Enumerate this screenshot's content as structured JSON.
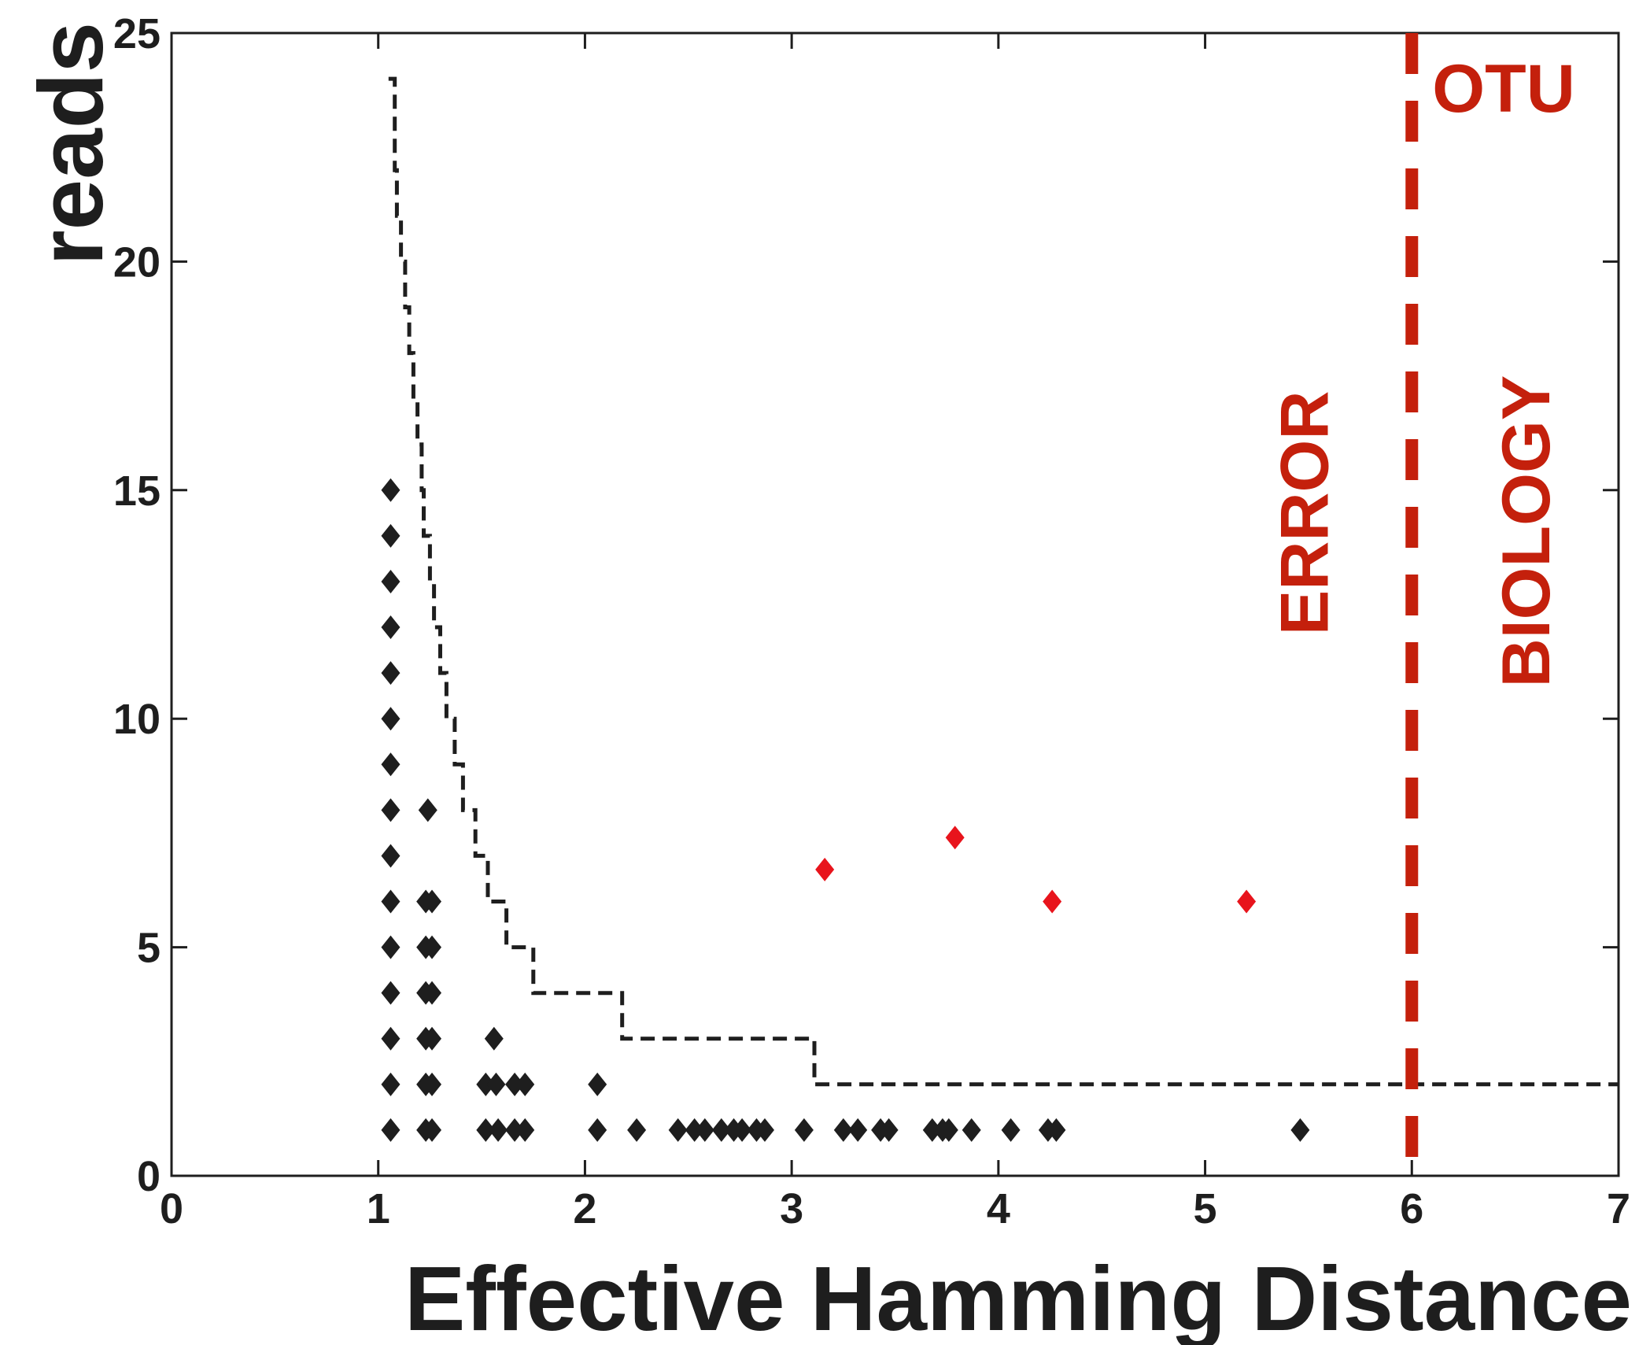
{
  "chart_data": {
    "type": "scatter",
    "title": "",
    "xlabel": "Effective Hamming Distance",
    "ylabel": "reads",
    "xlim": [
      0,
      7
    ],
    "ylim": [
      0,
      25
    ],
    "x_ticks": [
      "0",
      "1",
      "2",
      "3",
      "4",
      "5",
      "6",
      "7"
    ],
    "y_ticks": [
      "0",
      "5",
      "10",
      "15",
      "20",
      "25"
    ],
    "grid": false,
    "legend": "none",
    "colors": {
      "axis": "#1e1e1e",
      "points": "#1e1e1e",
      "highlight": "#e8141c",
      "otu": "#c4200c",
      "threshold_curve": "#1e1e1e"
    },
    "series": [
      {
        "marker": "diamond",
        "color": "#1e1e1e",
        "points": [
          [
            1.06,
            15
          ],
          [
            1.06,
            14
          ],
          [
            1.06,
            13
          ],
          [
            1.06,
            12
          ],
          [
            1.06,
            11
          ],
          [
            1.06,
            10
          ],
          [
            1.06,
            9
          ],
          [
            1.06,
            8
          ],
          [
            1.06,
            7
          ],
          [
            1.06,
            6
          ],
          [
            1.06,
            5
          ],
          [
            1.06,
            4
          ],
          [
            1.06,
            3
          ],
          [
            1.06,
            2
          ],
          [
            1.06,
            1
          ],
          [
            1.24,
            8
          ],
          [
            1.23,
            6
          ],
          [
            1.26,
            6
          ],
          [
            1.23,
            5
          ],
          [
            1.26,
            5
          ],
          [
            1.23,
            4
          ],
          [
            1.26,
            4
          ],
          [
            1.23,
            3
          ],
          [
            1.26,
            3
          ],
          [
            1.23,
            2
          ],
          [
            1.26,
            2
          ],
          [
            1.23,
            1
          ],
          [
            1.26,
            1
          ],
          [
            1.56,
            3
          ],
          [
            1.52,
            2
          ],
          [
            1.57,
            2
          ],
          [
            1.66,
            2
          ],
          [
            1.71,
            2
          ],
          [
            1.52,
            1
          ],
          [
            1.58,
            1
          ],
          [
            1.66,
            1
          ],
          [
            1.71,
            1
          ],
          [
            2.06,
            2
          ],
          [
            2.06,
            1
          ],
          [
            2.25,
            1
          ],
          [
            2.45,
            1
          ],
          [
            2.53,
            1
          ],
          [
            2.58,
            1
          ],
          [
            2.66,
            1
          ],
          [
            2.72,
            1
          ],
          [
            2.76,
            1
          ],
          [
            2.83,
            1
          ],
          [
            2.87,
            1
          ],
          [
            3.06,
            1
          ],
          [
            3.25,
            1
          ],
          [
            3.32,
            1
          ],
          [
            3.43,
            1
          ],
          [
            3.47,
            1
          ],
          [
            3.68,
            1
          ],
          [
            3.73,
            1
          ],
          [
            3.76,
            1
          ],
          [
            3.87,
            1
          ],
          [
            4.06,
            1
          ],
          [
            4.24,
            1
          ],
          [
            4.28,
            1
          ],
          [
            5.46,
            1
          ]
        ]
      },
      {
        "marker": "diamond",
        "color": "#e8141c",
        "points": [
          [
            3.16,
            6.7
          ],
          [
            3.79,
            7.4
          ],
          [
            4.26,
            6
          ],
          [
            5.2,
            6
          ]
        ]
      }
    ],
    "threshold_curve": {
      "style": "dashed-step",
      "x": [
        1.05,
        1.08,
        1.09,
        1.11,
        1.13,
        1.15,
        1.17,
        1.19,
        1.21,
        1.22,
        1.25,
        1.27,
        1.3,
        1.33,
        1.37,
        1.41,
        1.47,
        1.53,
        1.62,
        1.75,
        1.85,
        2.18,
        3.11,
        7.0
      ],
      "y": [
        24,
        22,
        21,
        20,
        19,
        18,
        17,
        16,
        15,
        14,
        13,
        12,
        11,
        10,
        9,
        8,
        7,
        6,
        5,
        4,
        4,
        3,
        2,
        2
      ]
    },
    "annotations": {
      "otu_line_x": 6,
      "otu_label": "OTU",
      "left_label": "ERROR",
      "right_label": "BIOLOGY"
    }
  }
}
